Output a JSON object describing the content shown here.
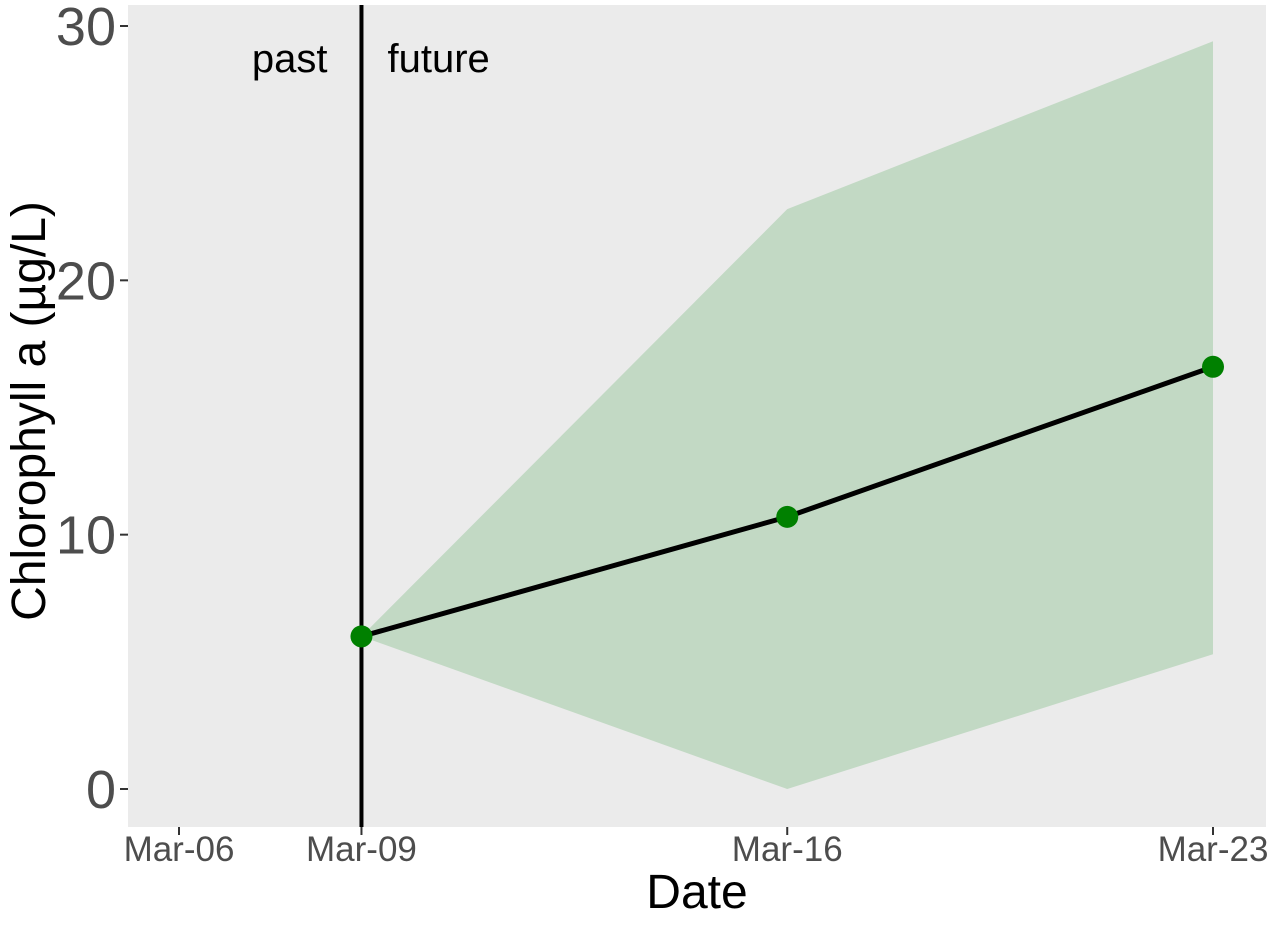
{
  "chart_data": {
    "type": "line",
    "xlabel": "Date",
    "ylabel": "Chlorophyll a (µg/L)",
    "x_ticks": [
      {
        "date": "2021-03-06",
        "label": "Mar-06"
      },
      {
        "date": "2021-03-09",
        "label": "Mar-09"
      },
      {
        "date": "2021-03-16",
        "label": "Mar-16"
      },
      {
        "date": "2021-03-23",
        "label": "Mar-23"
      }
    ],
    "xlim": [
      "2021-03-06",
      "2021-03-23"
    ],
    "y_ticks": [
      0,
      10,
      20,
      30
    ],
    "ylim": [
      0,
      30
    ],
    "grid": false,
    "series": [
      {
        "x": [
          "2021-03-09",
          "2021-03-16",
          "2021-03-23"
        ],
        "y": [
          6.0,
          10.7,
          16.6
        ],
        "color": "#008000",
        "line_color": "#000000"
      }
    ],
    "ribbon": {
      "x": [
        "2021-03-09",
        "2021-03-16",
        "2021-03-23"
      ],
      "lower": [
        6.0,
        0.0,
        5.3
      ],
      "upper": [
        6.0,
        22.8,
        29.4
      ],
      "color": "#c2d9c4"
    },
    "vline": {
      "x": "2021-03-09",
      "color": "#000000"
    },
    "annotations": [
      {
        "text": "past",
        "side": "left-of-vline"
      },
      {
        "text": "future",
        "side": "right-of-vline"
      }
    ],
    "panel_background": "#ebebeb"
  }
}
